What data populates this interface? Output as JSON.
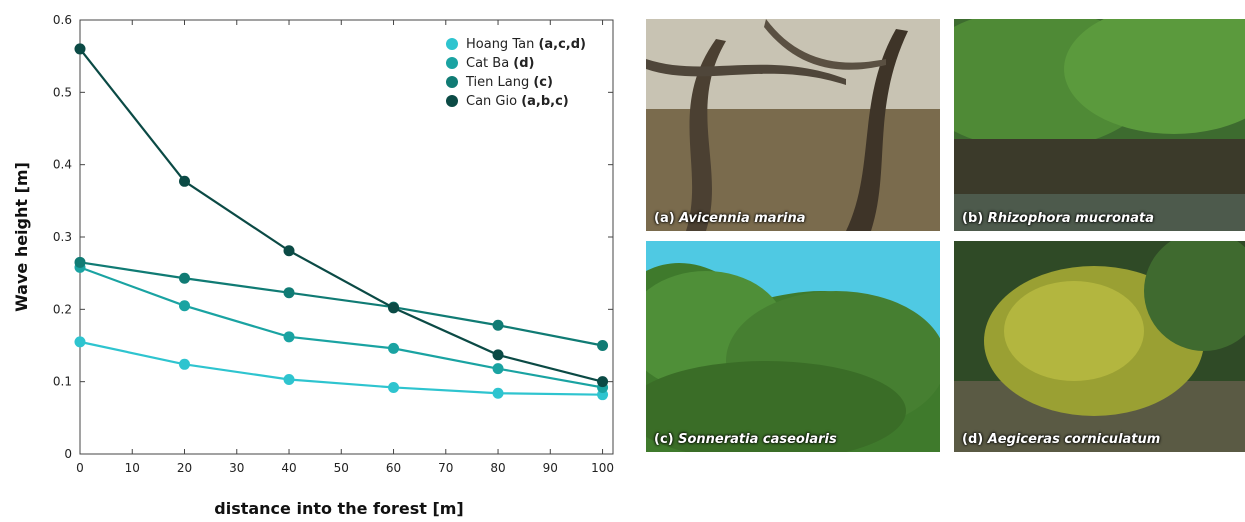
{
  "chart_data": {
    "type": "line",
    "xlabel": "distance into the forest [m]",
    "ylabel": "Wave height [m]",
    "xlim": [
      0,
      102
    ],
    "ylim": [
      0,
      0.6
    ],
    "xticks": [
      0,
      10,
      20,
      30,
      40,
      50,
      60,
      70,
      80,
      90,
      100
    ],
    "yticks": [
      0,
      0.1,
      0.2,
      0.3,
      0.4,
      0.5,
      0.6
    ],
    "ytick_labels": [
      "0",
      "0.1",
      "0.2",
      "0.3",
      "0.4",
      "0.5",
      "0.6"
    ],
    "x": [
      0,
      20,
      40,
      60,
      80,
      100
    ],
    "legend_placement": "top-right",
    "series": [
      {
        "name": "Hoang Tan",
        "sites": "(a,c,d)",
        "color": "#2ec4cf",
        "values": [
          0.155,
          0.124,
          0.103,
          0.092,
          0.084,
          0.082
        ]
      },
      {
        "name": "Cat Ba",
        "sites": "(d)",
        "color": "#1aa3a2",
        "values": [
          0.258,
          0.205,
          0.162,
          0.146,
          0.118,
          0.092
        ]
      },
      {
        "name": "Tien Lang",
        "sites": "(c)",
        "color": "#107b74",
        "values": [
          0.265,
          0.243,
          0.223,
          0.203,
          0.178,
          0.15
        ]
      },
      {
        "name": "Can Gio",
        "sites": "(a,b,c)",
        "color": "#0b4a45",
        "values": [
          0.56,
          0.377,
          0.281,
          0.202,
          0.137,
          0.1
        ]
      }
    ]
  },
  "photos": [
    {
      "letter": "(a)",
      "species": "Avicennia marina"
    },
    {
      "letter": "(b)",
      "species": "Rhizophora mucronata"
    },
    {
      "letter": "(c)",
      "species": "Sonneratia caseolaris"
    },
    {
      "letter": "(d)",
      "species": "Aegiceras corniculatum"
    }
  ]
}
